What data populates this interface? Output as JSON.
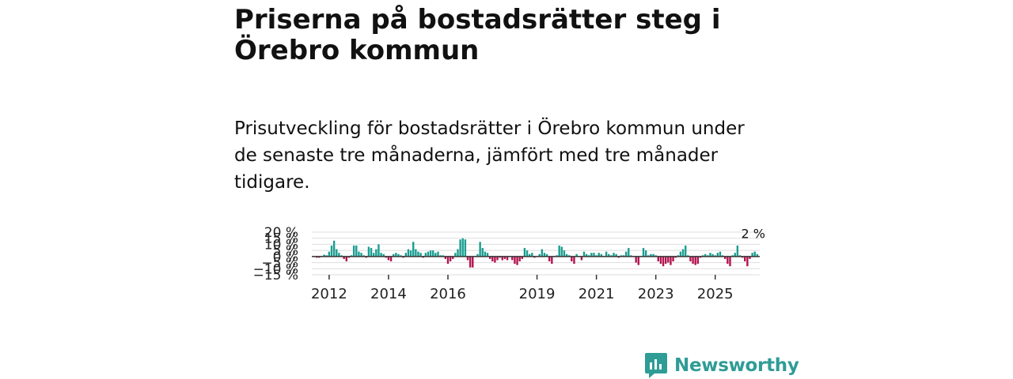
{
  "title": "Priserna på bostadsrätter steg i Örebro kommun",
  "subtitle": "Prisutveckling för bostadsrätter i Örebro kommun under de senaste tre månaderna, jämfört med tre månader tidigare.",
  "brand": {
    "name": "Newsworthy",
    "icon": "newsworthy-bar-chart-icon"
  },
  "colors": {
    "positive": "#1a9e91",
    "negative": "#b3134f",
    "grid": "#dddddd",
    "zero_line": "#333333",
    "brand": "#2f9c96"
  },
  "chart_data": {
    "type": "bar",
    "title": "",
    "xlabel": "",
    "ylabel": "",
    "ylim": [
      -15,
      20
    ],
    "y_ticks": [
      20,
      15,
      10,
      5,
      0,
      -5,
      -10,
      -15
    ],
    "y_tick_labels": [
      "20 %",
      "15 %",
      "10 %",
      "5 %",
      "0 %",
      "−5 %",
      "−10 %",
      "−15 %"
    ],
    "x_ticks": [
      {
        "label": "2012",
        "index": 6
      },
      {
        "label": "2014",
        "index": 30
      },
      {
        "label": "2016",
        "index": 54
      },
      {
        "label": "2019",
        "index": 90
      },
      {
        "label": "2021",
        "index": 114
      },
      {
        "label": "2023",
        "index": 138
      },
      {
        "label": "2025",
        "index": 162
      }
    ],
    "annotation": "2 %",
    "values": [
      0.5,
      -1,
      -1,
      0.5,
      1.5,
      1,
      4,
      9,
      13,
      6,
      3,
      1,
      -2,
      -4,
      -1,
      1,
      9,
      9,
      4,
      3,
      1,
      -1,
      8,
      7,
      3,
      6,
      10,
      3,
      2,
      -1,
      -3,
      -4,
      2,
      3,
      2,
      1,
      -1,
      3,
      6,
      5,
      12,
      6,
      4,
      3,
      -1,
      3,
      4,
      5,
      5,
      3,
      4,
      1,
      1,
      -2,
      -6,
      -4,
      -2,
      3,
      6,
      14,
      15,
      14,
      -3,
      -9,
      -9,
      0.5,
      2,
      12,
      7,
      4,
      3,
      -2,
      -4,
      -5,
      -3,
      -1,
      -3,
      -2,
      -3,
      0.5,
      -3,
      -6,
      -7,
      -4,
      -2,
      7,
      5,
      2,
      3,
      -1,
      0.5,
      2,
      6,
      3,
      2,
      -4,
      -6,
      0.5,
      1,
      9,
      8,
      5,
      2,
      1,
      -4,
      -6,
      2,
      0.5,
      -3,
      4,
      2,
      1,
      3,
      3,
      1,
      3,
      2,
      0.5,
      4,
      2,
      1,
      3,
      2,
      -1,
      1,
      1,
      4,
      7,
      1,
      0.5,
      -5,
      -7,
      0.5,
      7,
      5,
      1,
      2,
      2,
      1,
      -4,
      -6,
      -8,
      -6,
      -5,
      -7,
      -4,
      -1,
      1,
      4,
      6,
      9,
      1,
      -4,
      -6,
      -7,
      -6,
      -1,
      1,
      2,
      1,
      3,
      2,
      1,
      3,
      4,
      1,
      -2,
      -6,
      -8,
      1,
      3,
      9,
      1,
      -1,
      -4,
      -8,
      -2,
      3,
      4,
      2
    ]
  }
}
